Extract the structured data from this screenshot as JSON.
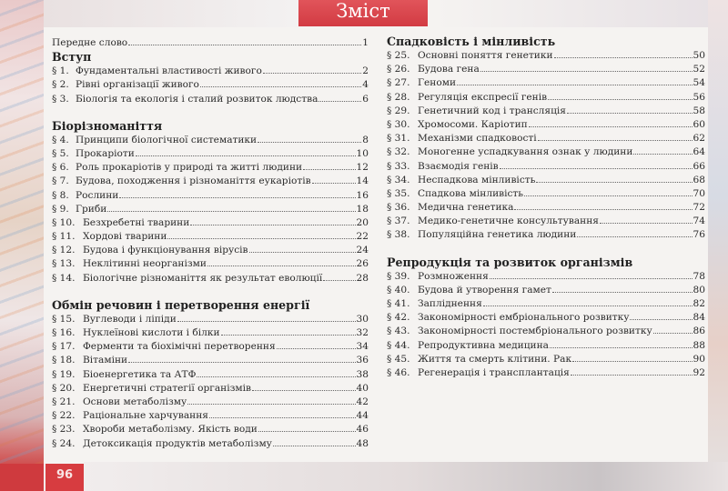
{
  "header": {
    "title": "Зміст"
  },
  "footer": {
    "page_number": "96"
  },
  "colors": {
    "accent": "#d73c40"
  },
  "left_column": {
    "sections": [
      {
        "heading": "",
        "items": [
          {
            "num": "",
            "title": "Передне слово",
            "page": "1"
          }
        ]
      },
      {
        "heading": "Вступ",
        "items": [
          {
            "num": "§ 1.",
            "title": "Фундаментальні властивості живого",
            "page": "2"
          },
          {
            "num": "§ 2.",
            "title": "Рівні організації живого",
            "page": "4"
          },
          {
            "num": "§ 3.",
            "title": "Біологія та екологія і сталий розвиток людства",
            "page": "6"
          }
        ]
      },
      {
        "heading": "Біорізноманіття",
        "items": [
          {
            "num": "§ 4.",
            "title": "Принципи біологічної систематики",
            "page": "8"
          },
          {
            "num": "§ 5.",
            "title": "Прокаріоти",
            "page": "10"
          },
          {
            "num": "§ 6.",
            "title": "Роль прокаріотів у природі та житті людини",
            "page": "12"
          },
          {
            "num": "§ 7.",
            "title": "Будова, походження і різноманіття еукаріотів",
            "page": "14"
          },
          {
            "num": "§ 8.",
            "title": "Рослини",
            "page": "16"
          },
          {
            "num": "§ 9.",
            "title": "Гриби",
            "page": "18"
          },
          {
            "num": "§ 10.",
            "title": "Безхребетні тварини",
            "page": "20"
          },
          {
            "num": "§ 11.",
            "title": "Хордові тварини",
            "page": "22"
          },
          {
            "num": "§ 12.",
            "title": "Будова і функціонування вірусів",
            "page": "24"
          },
          {
            "num": "§ 13.",
            "title": "Неклітинні неорганізми",
            "page": "26"
          },
          {
            "num": "§ 14.",
            "title": "Біологічне різноманіття як результат еволюції",
            "page": "28"
          }
        ]
      },
      {
        "heading": "Обмін речовин і перетворення енергії",
        "items": [
          {
            "num": "§ 15.",
            "title": "Вуглеводи і ліпіди",
            "page": "30"
          },
          {
            "num": "§ 16.",
            "title": "Нуклеїнові кислоти і білки",
            "page": "32"
          },
          {
            "num": "§ 17.",
            "title": "Ферменти та біохімічні перетворення",
            "page": "34"
          },
          {
            "num": "§ 18.",
            "title": "Вітаміни",
            "page": "36"
          },
          {
            "num": "§ 19.",
            "title": "Біоенергетика та АТФ",
            "page": "38"
          },
          {
            "num": "§ 20.",
            "title": "Енергетичні стратегії організмів",
            "page": "40"
          },
          {
            "num": "§ 21.",
            "title": "Основи метаболізму",
            "page": "42"
          },
          {
            "num": "§ 22.",
            "title": "Раціональне харчування",
            "page": "44"
          },
          {
            "num": "§ 23.",
            "title": "Хвороби метаболізму. Якість води",
            "page": "46"
          },
          {
            "num": "§ 24.",
            "title": "Детоксикація продуктів метаболізму",
            "page": "48"
          }
        ]
      }
    ]
  },
  "right_column": {
    "sections": [
      {
        "heading": "Спадковість і мінливість",
        "items": [
          {
            "num": "§ 25.",
            "title": "Основні поняття генетики",
            "page": "50"
          },
          {
            "num": "§ 26.",
            "title": "Будова гена",
            "page": "52"
          },
          {
            "num": "§ 27.",
            "title": "Геноми",
            "page": "54"
          },
          {
            "num": "§ 28.",
            "title": "Регуляція експресії генів",
            "page": "56"
          },
          {
            "num": "§ 29.",
            "title": "Генетичний код і трансляція",
            "page": "58"
          },
          {
            "num": "§ 30.",
            "title": "Хромосоми. Каріотип",
            "page": "60"
          },
          {
            "num": "§ 31.",
            "title": "Механізми спадковості",
            "page": "62"
          },
          {
            "num": "§ 32.",
            "title": "Моногенне успадкування ознак у людини",
            "page": "64"
          },
          {
            "num": "§ 33.",
            "title": "Взаємодія генів",
            "page": "66"
          },
          {
            "num": "§ 34.",
            "title": "Неспадкова мінливість",
            "page": "68"
          },
          {
            "num": "§ 35.",
            "title": "Спадкова мінливість",
            "page": "70"
          },
          {
            "num": "§ 36.",
            "title": "Медична генетика",
            "page": "72"
          },
          {
            "num": "§ 37.",
            "title": "Медико-генетичне консультування",
            "page": "74"
          },
          {
            "num": "§ 38.",
            "title": "Популяційна генетика людини",
            "page": "76"
          }
        ]
      },
      {
        "heading": "Репродукція та розвиток організмів",
        "items": [
          {
            "num": "§ 39.",
            "title": "Розмноження",
            "page": "78"
          },
          {
            "num": "§ 40.",
            "title": "Будова й утворення гамет",
            "page": "80"
          },
          {
            "num": "§ 41.",
            "title": "Запліднення",
            "page": "82"
          },
          {
            "num": "§ 42.",
            "title": "Закономірності ембріонального розвитку",
            "page": "84"
          },
          {
            "num": "§ 43.",
            "title": "Закономірності постембріонального розвитку",
            "page": "86"
          },
          {
            "num": "§ 44.",
            "title": "Репродуктивна медицина",
            "page": "88"
          },
          {
            "num": "§ 45.",
            "title": "Життя та смерть клітини. Рак",
            "page": "90"
          },
          {
            "num": "§ 46.",
            "title": "Регенерація і трансплантація",
            "page": "92"
          }
        ]
      }
    ]
  }
}
